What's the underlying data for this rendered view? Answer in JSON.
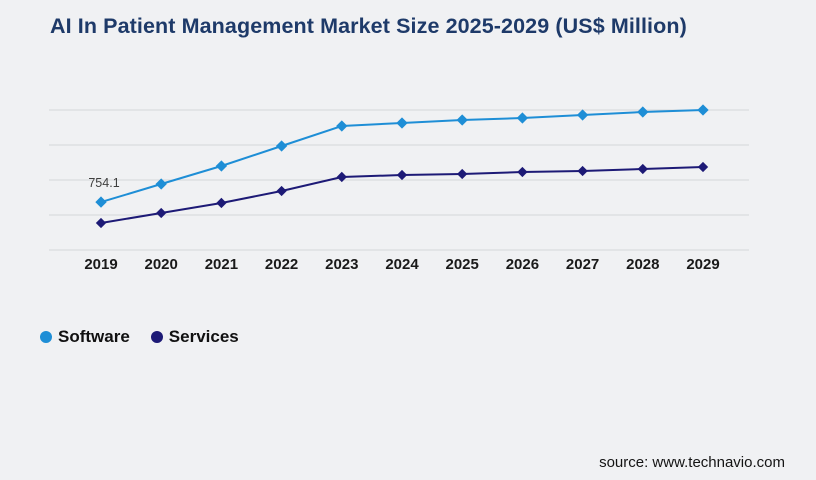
{
  "page": {
    "background": "#f0f1f3"
  },
  "chart_data": {
    "type": "line",
    "title": "AI In Patient Management Market Size 2025-2029 (US$ Million)",
    "x": [
      "2019",
      "2020",
      "2021",
      "2022",
      "2023",
      "2024",
      "2025",
      "2026",
      "2027",
      "2028",
      "2029"
    ],
    "series": [
      {
        "name": "Software",
        "color": "#1e8ed6",
        "marker": "diamond",
        "values": [
          754.1,
          1038,
          1322,
          1636,
          1951,
          1998,
          2045,
          2077,
          2124,
          2171,
          2203
        ]
      },
      {
        "name": "Services",
        "color": "#1d1a76",
        "marker": "diamond",
        "values": [
          425,
          582,
          740,
          928,
          1149,
          1180,
          1196,
          1227,
          1243,
          1274,
          1306
        ]
      }
    ],
    "ylim": [
      0,
      2360
    ],
    "xlabel": "",
    "ylabel": "",
    "grid": "horizontal",
    "y_axis_labels_visible": false,
    "legend_position": "bottom-left",
    "annotations": [
      {
        "series": "Software",
        "x": "2019",
        "text": "754.1"
      }
    ],
    "colors": {
      "gridline": "#d5d6d9",
      "tick_label": "#1a1a1a",
      "annotation": "#3f3f3f",
      "title": "#1e3a69"
    }
  },
  "footer": {
    "source": "source: www.technavio.com"
  }
}
